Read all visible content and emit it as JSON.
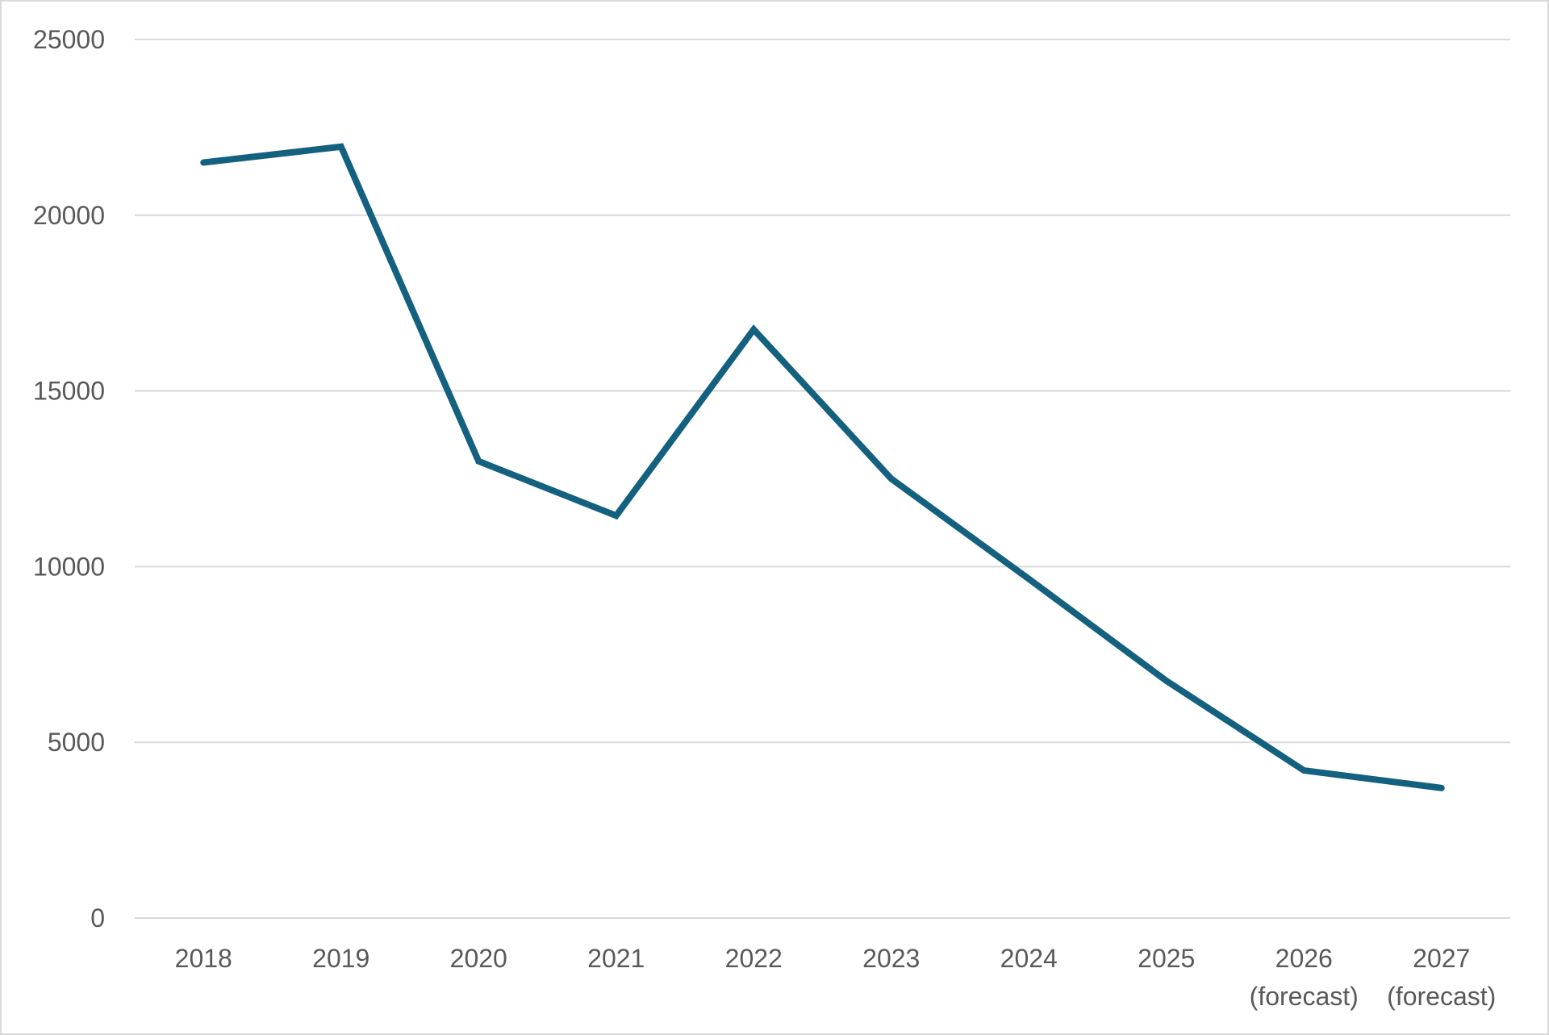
{
  "chart_data": {
    "type": "line",
    "title": "",
    "xlabel": "",
    "ylabel": "",
    "categories": [
      [
        "2018"
      ],
      [
        "2019"
      ],
      [
        "2020"
      ],
      [
        "2021"
      ],
      [
        "2022"
      ],
      [
        "2023"
      ],
      [
        "2024"
      ],
      [
        "2025"
      ],
      [
        "2026",
        "(forecast)"
      ],
      [
        "2027",
        "(forecast)"
      ]
    ],
    "series": [
      {
        "color": "#14607f",
        "values": [
          21500,
          21950,
          13000,
          11450,
          16750,
          12500,
          9650,
          6750,
          4200,
          3700
        ]
      }
    ],
    "ylim": [
      0,
      25000
    ],
    "yticks": [
      0,
      5000,
      10000,
      15000,
      20000,
      25000
    ],
    "grid": true,
    "gridline_color": "#d9d9d9",
    "legend": "none"
  }
}
